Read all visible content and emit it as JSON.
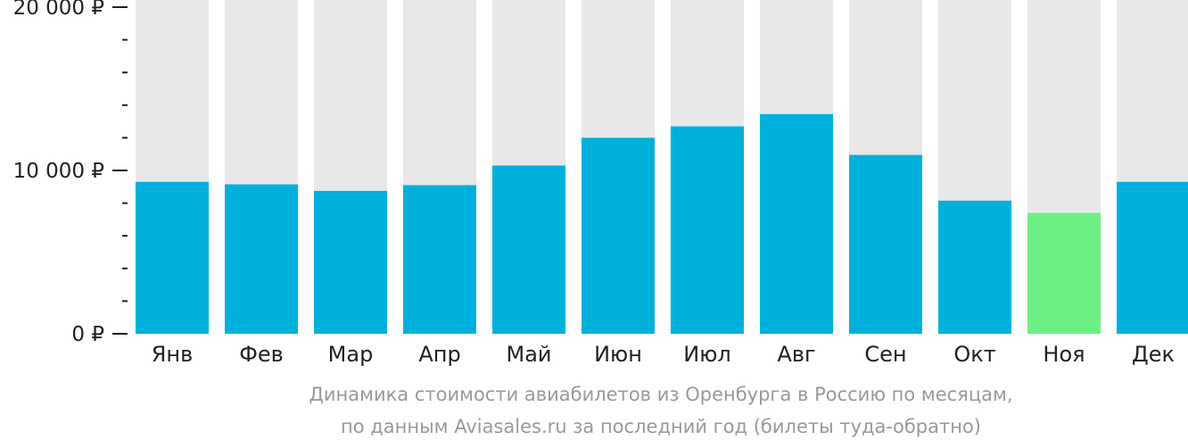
{
  "chart_data": {
    "type": "bar",
    "categories": [
      "Янв",
      "Фев",
      "Мар",
      "Апр",
      "Май",
      "Июн",
      "Июл",
      "Авг",
      "Сен",
      "Окт",
      "Ноя",
      "Дек"
    ],
    "values": [
      9300,
      9150,
      8750,
      9100,
      10300,
      12000,
      12700,
      13450,
      10950,
      8150,
      7400,
      9300
    ],
    "highlight_index": 10,
    "ylim": [
      0,
      20000
    ],
    "yticks": [
      {
        "value": 0,
        "label": "0 ₽"
      },
      {
        "value": 10000,
        "label": "10 000 ₽"
      },
      {
        "value": 20000,
        "label": "20 000 ₽"
      }
    ],
    "minor_tick_step": 2000,
    "colors": {
      "bar": "#00b0dc",
      "highlight": "#6cf086",
      "background": "#e8e8e8",
      "axis": "#222222",
      "tick_label": "#222222"
    },
    "grid": false,
    "legend": "none"
  },
  "caption": {
    "line1": "Динамика стоимости авиабилетов из Оренбурга в Россию по месяцам,",
    "line2": "по данным Aviasales.ru за последний год (билеты туда-обратно)"
  }
}
